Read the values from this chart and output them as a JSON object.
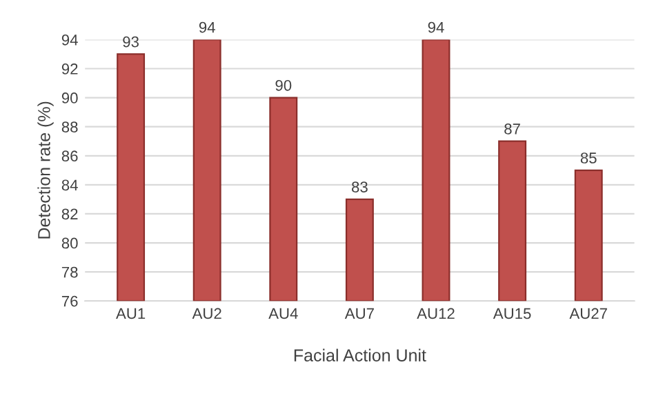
{
  "chart_data": {
    "type": "bar",
    "xlabel": "Facial Action Unit",
    "ylabel": "Detection rate (%)",
    "categories": [
      "AU1",
      "AU2",
      "AU4",
      "AU7",
      "AU12",
      "AU15",
      "AU27"
    ],
    "values": [
      93,
      94,
      90,
      83,
      94,
      87,
      85
    ],
    "color": "#c0504d",
    "ylim": [
      76,
      94
    ],
    "yticks": [
      76,
      78,
      80,
      82,
      84,
      86,
      88,
      90,
      92,
      94
    ],
    "grid": "y",
    "data_labels": true
  }
}
